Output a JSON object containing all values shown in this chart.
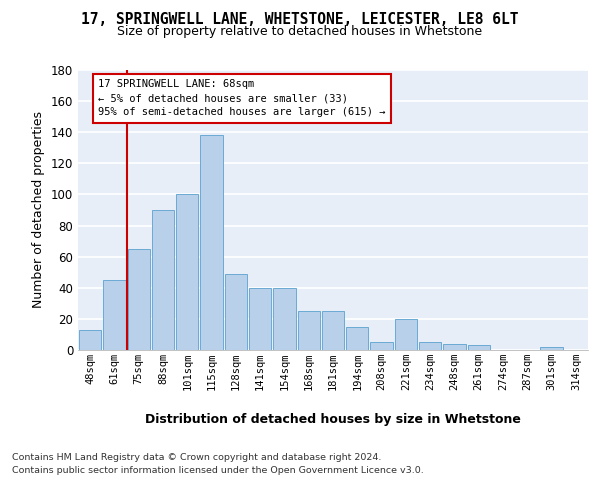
{
  "title1": "17, SPRINGWELL LANE, WHETSTONE, LEICESTER, LE8 6LT",
  "title2": "Size of property relative to detached houses in Whetstone",
  "xlabel": "Distribution of detached houses by size in Whetstone",
  "ylabel": "Number of detached properties",
  "bar_labels": [
    "48sqm",
    "61sqm",
    "75sqm",
    "88sqm",
    "101sqm",
    "115sqm",
    "128sqm",
    "141sqm",
    "154sqm",
    "168sqm",
    "181sqm",
    "194sqm",
    "208sqm",
    "221sqm",
    "234sqm",
    "248sqm",
    "261sqm",
    "274sqm",
    "287sqm",
    "301sqm",
    "314sqm"
  ],
  "bar_values": [
    13,
    45,
    65,
    90,
    100,
    138,
    49,
    40,
    40,
    25,
    25,
    15,
    5,
    20,
    5,
    4,
    3,
    0,
    0,
    2,
    0
  ],
  "bar_color": "#b8d0ea",
  "bar_edge_color": "#6aaad4",
  "vline_pos": 1.5,
  "vline_color": "#cc0000",
  "annotation_line1": "17 SPRINGWELL LANE: 68sqm",
  "annotation_line2": "← 5% of detached houses are smaller (33)",
  "annotation_line3": "95% of semi-detached houses are larger (615) →",
  "ylim": [
    0,
    180
  ],
  "yticks": [
    0,
    20,
    40,
    60,
    80,
    100,
    120,
    140,
    160,
    180
  ],
  "bg_color": "#e8eef8",
  "grid_color": "#ffffff",
  "footer_line1": "Contains HM Land Registry data © Crown copyright and database right 2024.",
  "footer_line2": "Contains public sector information licensed under the Open Government Licence v3.0."
}
